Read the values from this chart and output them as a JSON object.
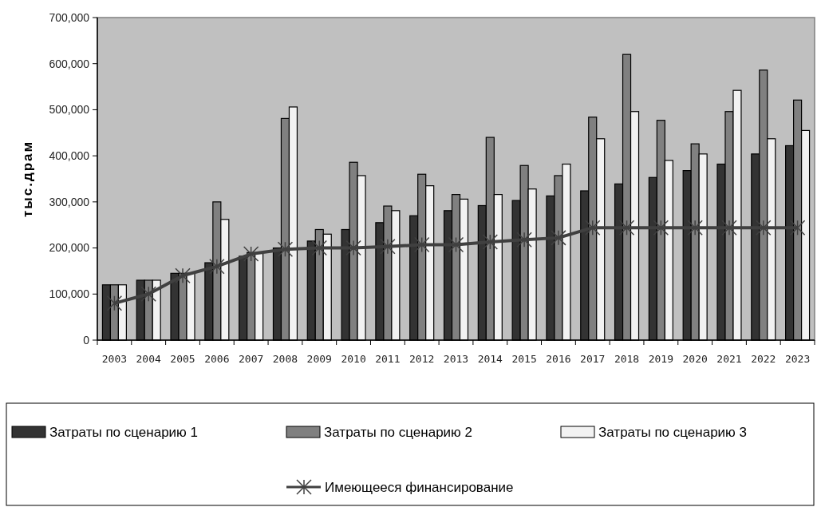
{
  "chart_data": {
    "type": "bar",
    "ylabel": "тыс.драм",
    "categories": [
      "2003",
      "2004",
      "2005",
      "2006",
      "2007",
      "2008",
      "2009",
      "2010",
      "2011",
      "2012",
      "2013",
      "2014",
      "2015",
      "2016",
      "2017",
      "2018",
      "2019",
      "2020",
      "2021",
      "2022",
      "2023"
    ],
    "series": [
      {
        "name": "Затраты по сценарию 1",
        "color": "#333333",
        "values": [
          120000,
          130000,
          145000,
          168000,
          182000,
          200000,
          215000,
          240000,
          255000,
          270000,
          281000,
          292000,
          303000,
          313000,
          324000,
          339000,
          353000,
          368000,
          382000,
          404000,
          422000
        ]
      },
      {
        "name": "Затраты по сценарию 2",
        "color": "#808080",
        "values": [
          120000,
          130000,
          145000,
          300000,
          190000,
          481000,
          240000,
          386000,
          291000,
          360000,
          316000,
          440000,
          379000,
          357000,
          484000,
          620000,
          477000,
          426000,
          496000,
          586000,
          521000
        ]
      },
      {
        "name": "Затраты по сценарию 3",
        "color": "#f2f2f2",
        "values": [
          120000,
          130000,
          145000,
          262000,
          188000,
          506000,
          230000,
          357000,
          281000,
          335000,
          306000,
          316000,
          328000,
          382000,
          437000,
          496000,
          390000,
          404000,
          542000,
          437000,
          455000
        ]
      },
      {
        "name": "Имеющееся финансирование",
        "type": "line",
        "color": "#404040",
        "marker": "cross",
        "values": [
          80000,
          100000,
          140000,
          160000,
          187000,
          197000,
          200000,
          200000,
          203000,
          207000,
          207000,
          213000,
          218000,
          222000,
          244000,
          244000,
          244000,
          244000,
          244000,
          244000,
          244000
        ]
      }
    ],
    "ylim": [
      0,
      700000
    ],
    "yticks": [
      {
        "value": 0,
        "label": "0"
      },
      {
        "value": 100000,
        "label": "100,000"
      },
      {
        "value": 200000,
        "label": "200,000"
      },
      {
        "value": 300000,
        "label": "300,000"
      },
      {
        "value": 400000,
        "label": "400,000"
      },
      {
        "value": 500000,
        "label": "500,000"
      },
      {
        "value": 600000,
        "label": "600,000"
      },
      {
        "value": 700000,
        "label": "700,000"
      }
    ],
    "grid": false,
    "legend": "bottom"
  }
}
